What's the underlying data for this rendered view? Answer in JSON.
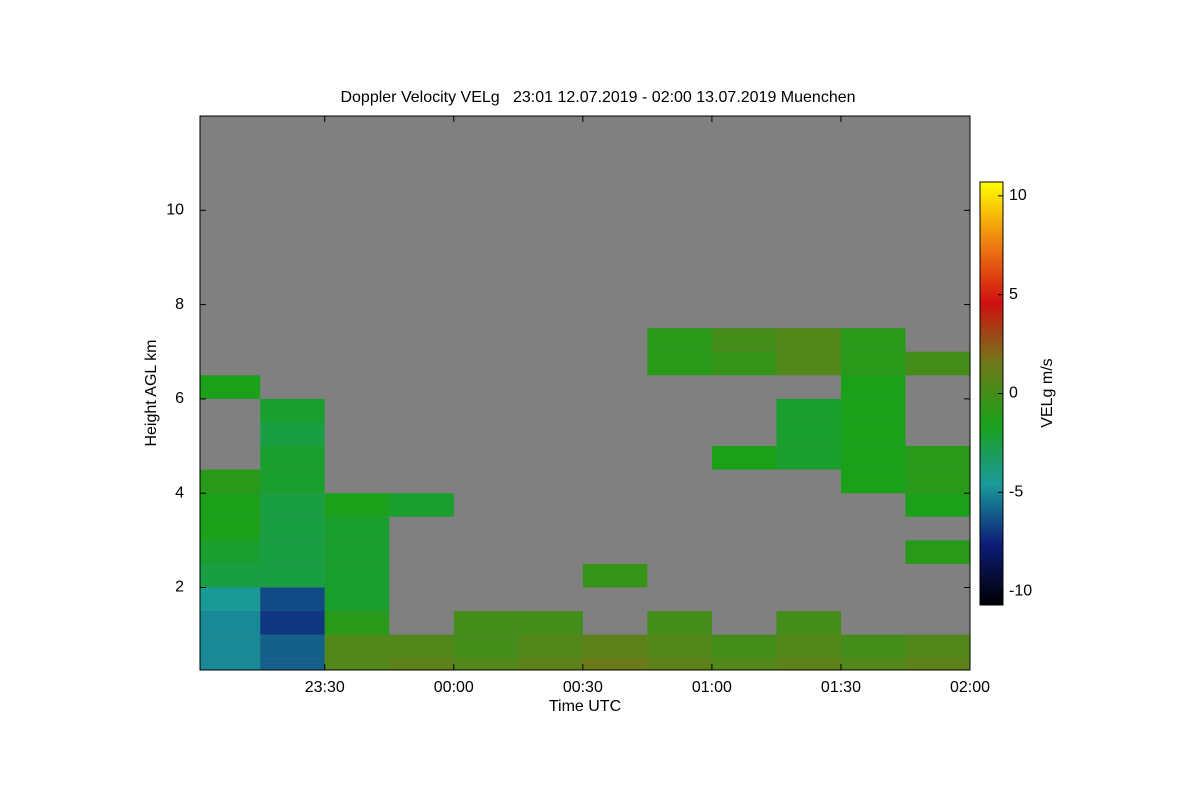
{
  "chart_data": {
    "type": "heatmap",
    "title": "Doppler Velocity VELg   23:01 12.07.2019 - 02:00 13.07.2019 Muenchen",
    "x_label": "Time UTC",
    "y_label": "Height AGL km",
    "colorbar_label": "VELg m/s",
    "xlim": [
      23.0167,
      26
    ],
    "ylim": [
      0.25,
      12
    ],
    "xticks": [
      {
        "value": 23.5,
        "label": "23:30"
      },
      {
        "value": 24,
        "label": "00:00"
      },
      {
        "value": 24.5,
        "label": "00:30"
      },
      {
        "value": 25,
        "label": "01:00"
      },
      {
        "value": 25.5,
        "label": "01:30"
      },
      {
        "value": 26,
        "label": "02:00"
      }
    ],
    "yticks": [
      2,
      4,
      6,
      8,
      10
    ],
    "clim": [
      -10.7,
      10.7
    ],
    "cticks": [
      -10,
      -5,
      0,
      5,
      10
    ],
    "background": "#808080",
    "colormap": [
      "#000000",
      "#0c1c78",
      "#1a9a9a",
      "#1aa01a",
      "#6e7a1a",
      "#d01010",
      "#f08010",
      "#ffff00"
    ],
    "x_bins": [
      23,
      23.25,
      23.5,
      23.75,
      24,
      24.25,
      24.5,
      24.75,
      25,
      25.25,
      25.5,
      25.75,
      26
    ],
    "y_bins": [
      0,
      0.5,
      1,
      1.5,
      2,
      2.5,
      3,
      3.5,
      4,
      4.5,
      5,
      5.5,
      6,
      6.5,
      7,
      7.5,
      8,
      8.5,
      9,
      9.5,
      10,
      10.5,
      11,
      11.5,
      12
    ],
    "z": [
      [
        -5,
        -6,
        0.5,
        1,
        0.5,
        1,
        1.5,
        1,
        0.5,
        1,
        0.5,
        1
      ],
      [
        -5,
        -6,
        0.5,
        0.5,
        0,
        0.5,
        1,
        0.5,
        0,
        0.5,
        0,
        0.5
      ],
      [
        -5,
        -7,
        -1,
        null,
        0,
        0,
        null,
        0,
        null,
        0,
        null,
        null
      ],
      [
        -4.5,
        -6.5,
        -2,
        null,
        null,
        null,
        null,
        null,
        null,
        null,
        null,
        null
      ],
      [
        -2.5,
        -2.5,
        -2,
        null,
        null,
        null,
        -0.5,
        null,
        null,
        null,
        null,
        null
      ],
      [
        -2,
        -2.5,
        -2,
        null,
        null,
        null,
        null,
        null,
        null,
        null,
        null,
        -1
      ],
      [
        -1.5,
        -2.5,
        -2,
        null,
        null,
        null,
        null,
        null,
        null,
        null,
        null,
        null
      ],
      [
        -1.5,
        -2.5,
        -1.5,
        -2,
        null,
        null,
        null,
        null,
        null,
        null,
        null,
        -1.5
      ],
      [
        -1,
        -2,
        null,
        null,
        null,
        null,
        null,
        null,
        null,
        null,
        -1.5,
        -1
      ],
      [
        null,
        -2,
        null,
        null,
        null,
        null,
        null,
        null,
        -1.5,
        -2,
        -1.5,
        -1
      ],
      [
        null,
        -2.5,
        null,
        null,
        null,
        null,
        null,
        null,
        null,
        -2,
        -1.5,
        null
      ],
      [
        null,
        -2,
        null,
        null,
        null,
        null,
        null,
        null,
        null,
        -2,
        -1.5,
        null
      ],
      [
        -1.5,
        null,
        null,
        null,
        null,
        null,
        null,
        null,
        null,
        null,
        -1.5,
        null
      ],
      [
        null,
        null,
        null,
        null,
        null,
        null,
        null,
        -1,
        -0.5,
        0.5,
        -1,
        0
      ],
      [
        null,
        null,
        null,
        null,
        null,
        null,
        null,
        -1,
        0,
        0.5,
        -1,
        null
      ],
      [
        null,
        null,
        null,
        null,
        null,
        null,
        null,
        null,
        null,
        null,
        null,
        null
      ],
      [
        null,
        null,
        null,
        null,
        null,
        null,
        null,
        null,
        null,
        null,
        null,
        null
      ],
      [
        null,
        null,
        null,
        null,
        null,
        null,
        null,
        null,
        null,
        null,
        null,
        null
      ],
      [
        null,
        null,
        null,
        null,
        null,
        null,
        null,
        null,
        null,
        null,
        null,
        null
      ],
      [
        null,
        null,
        null,
        null,
        null,
        null,
        null,
        null,
        null,
        null,
        null,
        null
      ],
      [
        null,
        null,
        null,
        null,
        null,
        null,
        null,
        null,
        null,
        null,
        null,
        null
      ],
      [
        null,
        null,
        null,
        null,
        null,
        null,
        null,
        null,
        null,
        null,
        null,
        null
      ],
      [
        null,
        null,
        null,
        null,
        null,
        null,
        null,
        null,
        null,
        null,
        null,
        null
      ],
      [
        null,
        null,
        null,
        null,
        null,
        null,
        null,
        null,
        null,
        null,
        null,
        null
      ]
    ]
  }
}
